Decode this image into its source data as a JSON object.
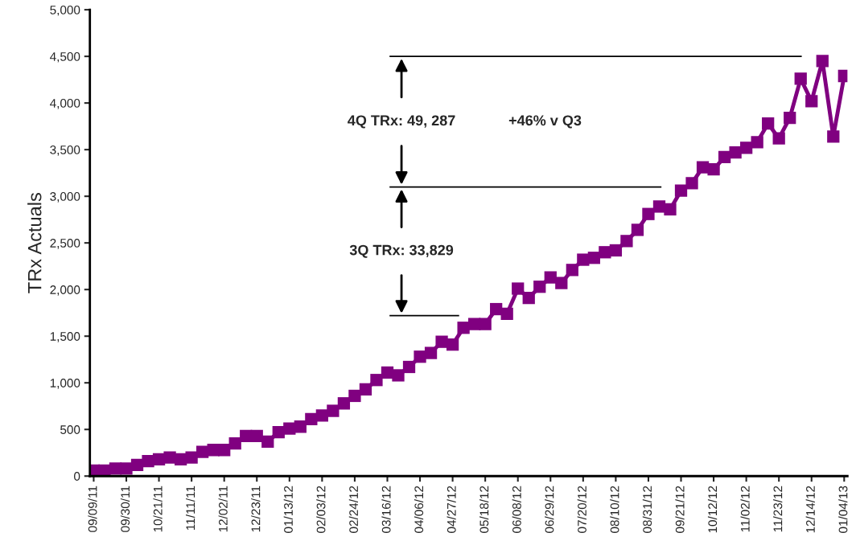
{
  "chart_data": {
    "type": "line",
    "ylabel": "TRx Actuals",
    "categories": [
      "09/09/11",
      null,
      null,
      "09/30/11",
      null,
      null,
      "10/21/11",
      null,
      null,
      "11/11/11",
      null,
      null,
      "12/02/11",
      null,
      null,
      "12/23/11",
      null,
      null,
      "01/13/12",
      null,
      null,
      "02/03/12",
      null,
      null,
      "02/24/12",
      null,
      null,
      "03/16/12",
      null,
      null,
      "04/06/12",
      null,
      null,
      "04/27/12",
      null,
      null,
      "05/18/12",
      null,
      null,
      "06/08/12",
      null,
      null,
      "06/29/12",
      null,
      null,
      "07/20/12",
      null,
      null,
      "08/10/12",
      null,
      null,
      "08/31/12",
      null,
      null,
      "09/21/12",
      null,
      null,
      "10/12/12",
      null,
      null,
      "11/02/12",
      null,
      null,
      "11/23/12",
      null,
      null,
      "12/14/12",
      null,
      null,
      "01/04/13"
    ],
    "series": [
      {
        "color": "#800080",
        "values": [
          60,
          60,
          80,
          80,
          120,
          160,
          180,
          200,
          180,
          200,
          260,
          280,
          280,
          350,
          430,
          430,
          370,
          470,
          510,
          530,
          610,
          650,
          700,
          780,
          860,
          930,
          1030,
          1110,
          1080,
          1170,
          1280,
          1320,
          1440,
          1410,
          1590,
          1630,
          1630,
          1790,
          1740,
          2010,
          1910,
          2030,
          2130,
          2070,
          2210,
          2320,
          2340,
          2400,
          2420,
          2520,
          2640,
          2810,
          2890,
          2860,
          3060,
          3140,
          3310,
          3290,
          3420,
          3470,
          3520,
          3580,
          3780,
          3620,
          3840,
          4260,
          4020,
          4450,
          3640,
          4290
        ]
      }
    ],
    "ylim": [
      0,
      5000
    ],
    "yticks": [
      0,
      500,
      {
        "value": 1000,
        "label": "1,000"
      },
      {
        "value": 1500,
        "label": "1,500"
      },
      {
        "value": 2000,
        "label": "2,000"
      },
      {
        "value": 2500,
        "label": "2,500"
      },
      {
        "value": 3000,
        "label": "3,000"
      },
      {
        "value": 3500,
        "label": "3,500"
      },
      {
        "value": 4000,
        "label": "4,000"
      },
      {
        "value": 4500,
        "label": "4,500"
      },
      {
        "value": 5000,
        "label": "5,000"
      }
    ],
    "ref_lines": [
      {
        "axis": "y",
        "value": 1720,
        "color": "#000000"
      },
      {
        "axis": "y",
        "value": 3100,
        "color": "#000000"
      },
      {
        "axis": "y",
        "value": 4500,
        "color": "#000000"
      }
    ],
    "annotations": [
      "3Q TRx: 33,829",
      "4Q TRx: 49, 287",
      "+46% v Q3"
    ],
    "marker": "square",
    "line_style": "solid",
    "grid": false,
    "legend": false
  }
}
